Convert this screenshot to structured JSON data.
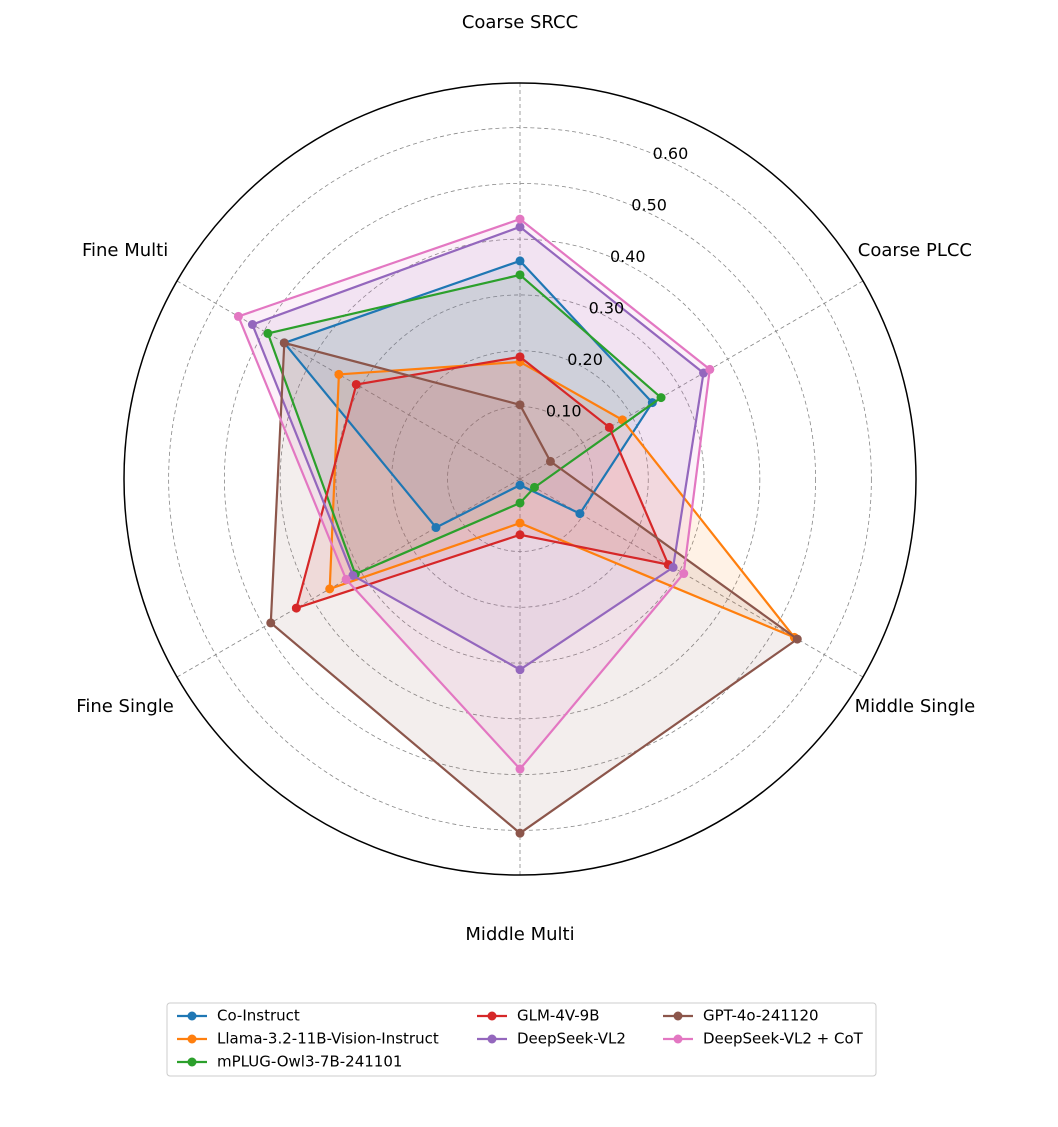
{
  "chart_data": {
    "type": "radar",
    "categories": [
      "Coarse SRCC",
      "Coarse PLCC",
      "Middle Single",
      "Middle Multi",
      "Fine Single",
      "Fine Multi"
    ],
    "rlim": [
      -0.03,
      0.68
    ],
    "rticks": [
      {
        "value": 0.1,
        "label": "0.10"
      },
      {
        "value": 0.2,
        "label": "0.20"
      },
      {
        "value": 0.3,
        "label": "0.30"
      },
      {
        "value": 0.4,
        "label": "0.40"
      },
      {
        "value": 0.5,
        "label": "0.50"
      },
      {
        "value": 0.6,
        "label": "0.60"
      }
    ],
    "grid": true,
    "legend": "lower center",
    "series": [
      {
        "name": "Co-Instruct",
        "color": "#1f77b4",
        "values": [
          0.361,
          0.244,
          0.094,
          -0.019,
          0.144,
          0.458
        ]
      },
      {
        "name": "Llama-3.2-11B-Vision-Instruct",
        "color": "#ff7f0e",
        "values": [
          0.18,
          0.182,
          0.538,
          0.049,
          0.364,
          0.345
        ]
      },
      {
        "name": "mPLUG-Owl3-7B-241101",
        "color": "#2ca02c",
        "values": [
          0.336,
          0.262,
          0.0,
          0.013,
          0.311,
          0.492
        ]
      },
      {
        "name": "GLM-4V-9B",
        "color": "#d62728",
        "values": [
          0.189,
          0.155,
          0.277,
          0.07,
          0.433,
          0.309
        ]
      },
      {
        "name": "DeepSeek-VL2",
        "color": "#9467bd",
        "values": [
          0.422,
          0.35,
          0.287,
          0.312,
          0.316,
          0.524
        ]
      },
      {
        "name": "GPT-4o-241120",
        "color": "#8c564b",
        "values": [
          0.103,
          0.033,
          0.544,
          0.605,
          0.486,
          0.458
        ]
      },
      {
        "name": "DeepSeek-VL2 + CoT",
        "color": "#e377c2",
        "values": [
          0.436,
          0.363,
          0.309,
          0.49,
          0.33,
          0.553
        ]
      }
    ]
  }
}
